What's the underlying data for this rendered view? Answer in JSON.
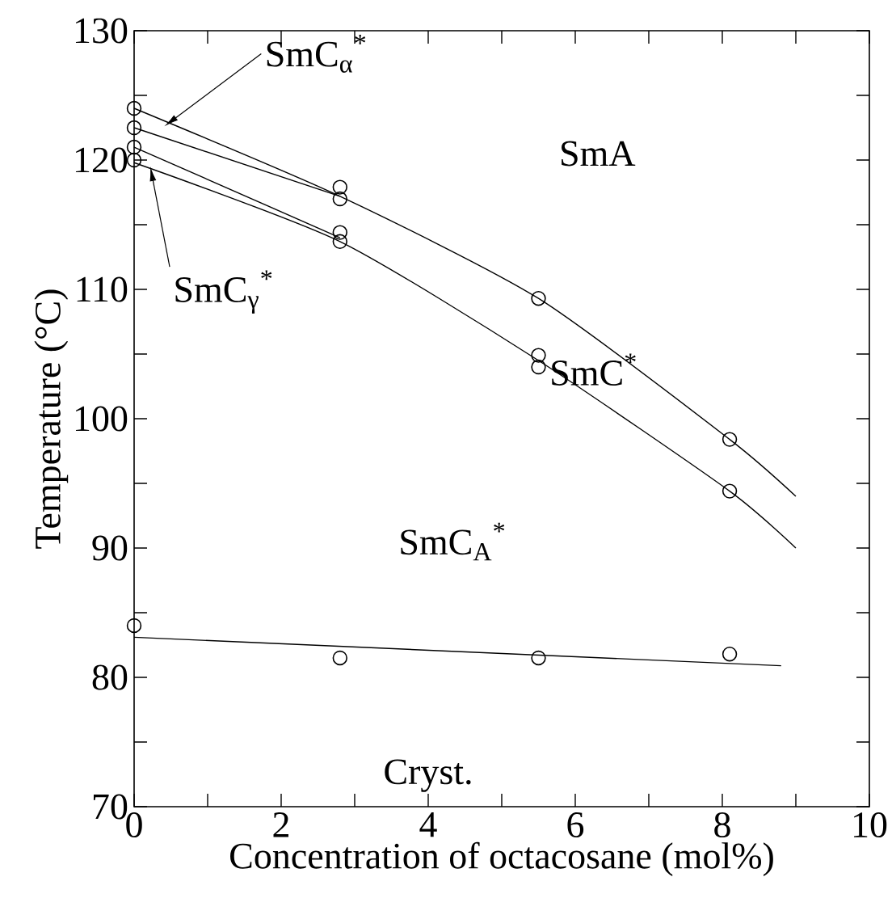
{
  "chart_data": {
    "type": "scatter",
    "xlabel": "Concentration of octacosane (mol%)",
    "ylabel": "Temperature (°C)",
    "xlim": [
      0,
      10
    ],
    "ylim": [
      70,
      130
    ],
    "xticks": [
      0,
      {
        "value": 1,
        "label": null
      },
      2,
      {
        "value": 3,
        "label": null
      },
      4,
      {
        "value": 5,
        "label": null
      },
      6,
      {
        "value": 7,
        "label": null
      },
      8,
      {
        "value": 9,
        "label": null
      },
      10
    ],
    "yticks": [
      70,
      {
        "value": 75,
        "label": null
      },
      80,
      {
        "value": 85,
        "label": null
      },
      90,
      {
        "value": 95,
        "label": null
      },
      100,
      {
        "value": 105,
        "label": null
      },
      110,
      {
        "value": 115,
        "label": null
      },
      120,
      {
        "value": 125,
        "label": null
      },
      130
    ],
    "series": [
      {
        "color": "#000000",
        "marker": "circle",
        "x": [
          0,
          0,
          0,
          0,
          0,
          2.8,
          2.8,
          2.8,
          2.8,
          2.8,
          5.5,
          5.5,
          5.5,
          5.5,
          8.1,
          8.1,
          8.1
        ],
        "values": [
          124.0,
          122.5,
          121.0,
          120.0,
          84.0,
          117.9,
          117.0,
          114.4,
          113.7,
          81.5,
          109.3,
          104.9,
          104.0,
          81.5,
          98.4,
          94.4,
          81.8
        ]
      },
      {
        "type": "line",
        "color": "#000000",
        "x": [
          0,
          2.8,
          5.5,
          8.1,
          9
        ],
        "values": [
          124.0,
          117.2,
          109.3,
          98.4,
          94.0
        ]
      },
      {
        "type": "line",
        "color": "#000000",
        "x": [
          0,
          2.8
        ],
        "values": [
          122.5,
          117.2
        ]
      },
      {
        "type": "line",
        "color": "#000000",
        "x": [
          0,
          2.8
        ],
        "values": [
          121.0,
          114.0
        ]
      },
      {
        "type": "line",
        "color": "#000000",
        "x": [
          0,
          2.8,
          5.5,
          8.1,
          9
        ],
        "values": [
          119.8,
          113.7,
          104.5,
          94.4,
          90.0
        ]
      },
      {
        "type": "line",
        "color": "#000000",
        "x": [
          0,
          8.8
        ],
        "values": [
          83.1,
          80.9
        ]
      }
    ],
    "annotations": [
      "SmA",
      {
        "text": "SmC$_{α}$$^{*}$",
        "x": 0.41,
        "y": 122.6
      },
      {
        "text": "SmC$_{γ}$$^{*}$",
        "x": 0.22,
        "y": 119.5
      },
      "SmC$^{*}$",
      "SmC$_{A}$$^{*}$",
      "Cryst."
    ]
  }
}
